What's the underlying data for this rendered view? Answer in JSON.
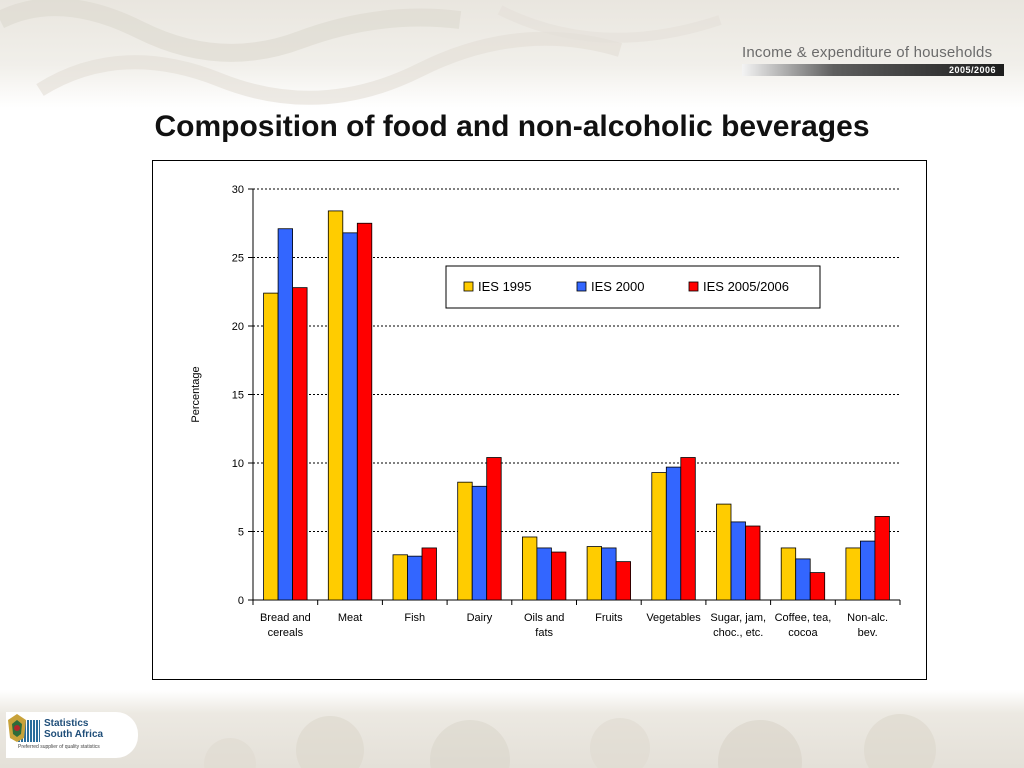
{
  "header": {
    "brand_title": "Income & expenditure of households",
    "brand_sub": "2005/2006"
  },
  "slide": {
    "title": "Composition of food and non-alcoholic beverages"
  },
  "footer": {
    "logo_line1": "Statistics",
    "logo_line2": "South Africa",
    "logo_tagline": "Preferred supplier of quality statistics"
  },
  "colors": {
    "ies1995": "#FFCC00",
    "ies2000": "#3366FF",
    "ies2005": "#FF0000"
  },
  "chart_data": {
    "type": "bar",
    "title": "",
    "xlabel": "",
    "ylabel": "Percentage",
    "ylim": [
      0,
      30
    ],
    "yticks": [
      0,
      5,
      10,
      15,
      20,
      25,
      30
    ],
    "grid": true,
    "legend_position": "top-right",
    "categories": [
      [
        "Bread and",
        "cereals"
      ],
      [
        "Meat"
      ],
      [
        "Fish"
      ],
      [
        "Dairy"
      ],
      [
        "Oils and",
        "fats"
      ],
      [
        "Fruits"
      ],
      [
        "Vegetables"
      ],
      [
        "Sugar, jam,",
        "choc., etc."
      ],
      [
        "Coffee, tea,",
        "cocoa"
      ],
      [
        "Non-alc.",
        "bev."
      ]
    ],
    "series": [
      {
        "name": "IES 1995",
        "color": "#FFCC00",
        "values": [
          22.4,
          28.4,
          3.3,
          8.6,
          4.6,
          3.9,
          9.3,
          7.0,
          3.8,
          3.8
        ]
      },
      {
        "name": "IES 2000",
        "color": "#3366FF",
        "values": [
          27.1,
          26.8,
          3.2,
          8.3,
          3.8,
          3.8,
          9.7,
          5.7,
          3.0,
          4.3
        ]
      },
      {
        "name": "IES 2005/2006",
        "color": "#FF0000",
        "values": [
          22.8,
          27.5,
          3.8,
          10.4,
          3.5,
          2.8,
          10.4,
          5.4,
          2.0,
          6.1
        ]
      }
    ]
  }
}
